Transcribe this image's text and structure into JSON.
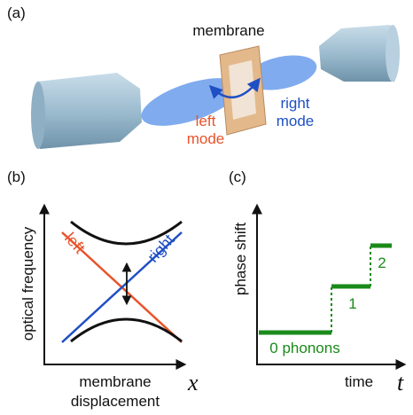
{
  "panel_a": {
    "label": "(a)",
    "membrane": "membrane",
    "left_mode": [
      "left",
      "mode"
    ],
    "right_mode": [
      "right",
      "mode"
    ]
  },
  "panel_b": {
    "label": "(b)",
    "y_axis": "optical frequency",
    "left": "left",
    "right": "right",
    "x_axis": [
      "membrane",
      "displacement"
    ],
    "x_symbol": "x"
  },
  "panel_c": {
    "label": "(c)",
    "y_axis": "phase shift",
    "steps": [
      "0 phonons",
      "1",
      "2"
    ],
    "x_axis": "time",
    "x_symbol": "t"
  }
}
